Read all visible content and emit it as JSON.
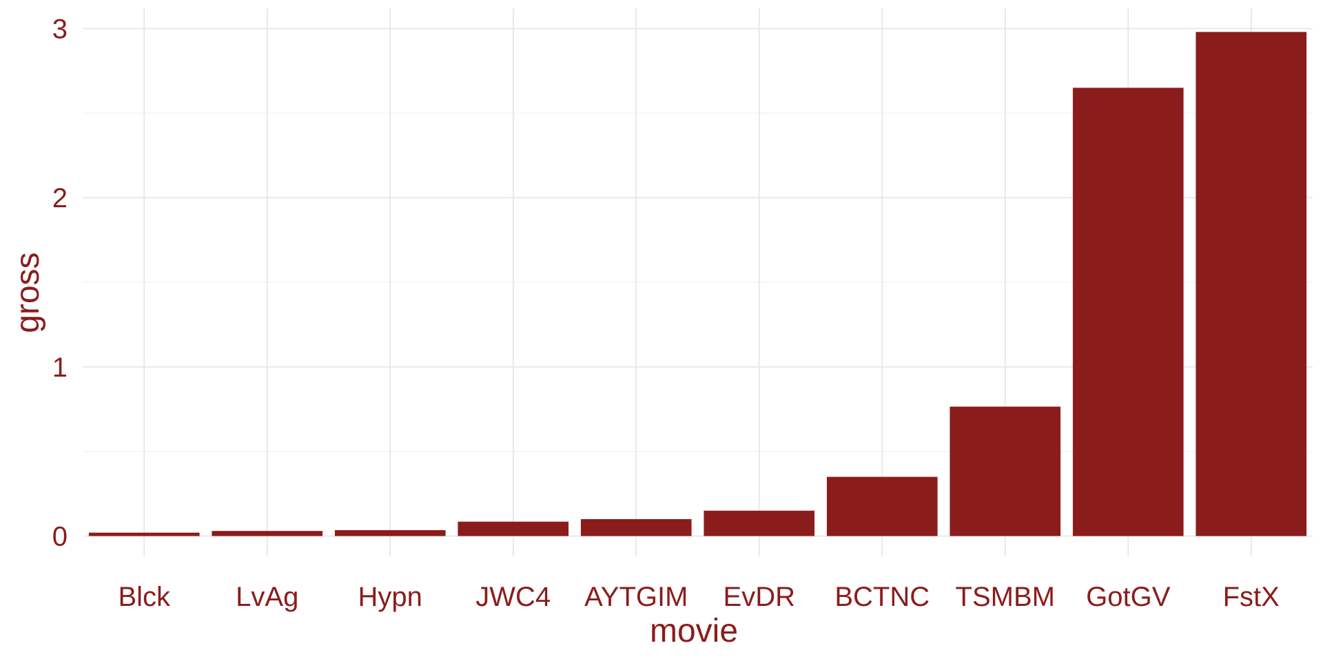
{
  "chart_data": {
    "type": "bar",
    "categories": [
      "Blck",
      "LvAg",
      "Hypn",
      "JWC4",
      "AYTGIM",
      "EvDR",
      "BCTNC",
      "TSMBM",
      "GotGV",
      "FstX"
    ],
    "values": [
      0.02,
      0.03,
      0.035,
      0.085,
      0.1,
      0.15,
      0.35,
      0.765,
      2.65,
      2.98
    ],
    "xlabel": "movie",
    "ylabel": "gross",
    "ylim": [
      -0.12,
      3.12
    ],
    "yticks": [
      0,
      1,
      2,
      3
    ],
    "ytick_labels": [
      "0",
      "1",
      "2",
      "3"
    ],
    "grid": true,
    "legend": "none"
  },
  "colors": {
    "bar": "#8b1c1c",
    "text": "#8b1c1c",
    "grid_major": "#e6e6e6",
    "grid_minor": "#f0f0f0",
    "background": "#ffffff"
  }
}
